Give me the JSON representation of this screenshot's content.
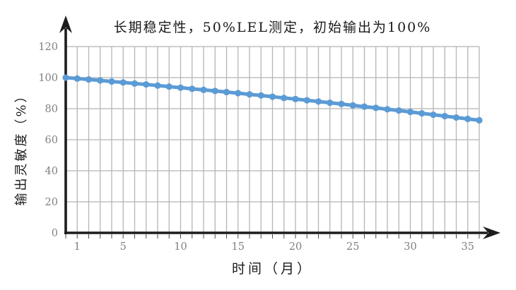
{
  "chart_data": {
    "type": "line",
    "title": "长期稳定性，50%LEL测定，初始输出为100%",
    "xlabel": "时间（月）",
    "ylabel": "输出灵敏度（%）",
    "x": [
      0,
      1,
      2,
      3,
      4,
      5,
      6,
      7,
      8,
      9,
      10,
      11,
      12,
      13,
      14,
      15,
      16,
      17,
      18,
      19,
      20,
      21,
      22,
      23,
      24,
      25,
      26,
      27,
      28,
      29,
      30,
      31,
      32,
      33,
      34,
      35,
      36
    ],
    "values": [
      100.0,
      99.4,
      98.8,
      98.2,
      97.5,
      96.9,
      96.2,
      95.6,
      94.9,
      94.2,
      93.5,
      92.8,
      92.1,
      91.4,
      90.7,
      90.0,
      89.2,
      88.5,
      87.7,
      86.9,
      86.2,
      85.4,
      84.6,
      83.8,
      83.0,
      82.1,
      81.3,
      80.5,
      79.6,
      78.8,
      77.9,
      77.0,
      76.1,
      75.2,
      74.3,
      73.4,
      72.5
    ],
    "x_tick_labels": [
      1,
      5,
      10,
      15,
      20,
      25,
      30,
      35
    ],
    "y_ticks": [
      0,
      20,
      40,
      60,
      80,
      100,
      120
    ],
    "xlim": [
      0,
      36
    ],
    "ylim": [
      0,
      120
    ],
    "grid": "both",
    "legend": "none",
    "series_name": "输出灵敏度",
    "line_color": "#5B9BD5",
    "marker": "circle",
    "gridline_color": "#b5b5b5",
    "axis_color": "#1c1c1c",
    "tick_label_color": "#808080"
  }
}
